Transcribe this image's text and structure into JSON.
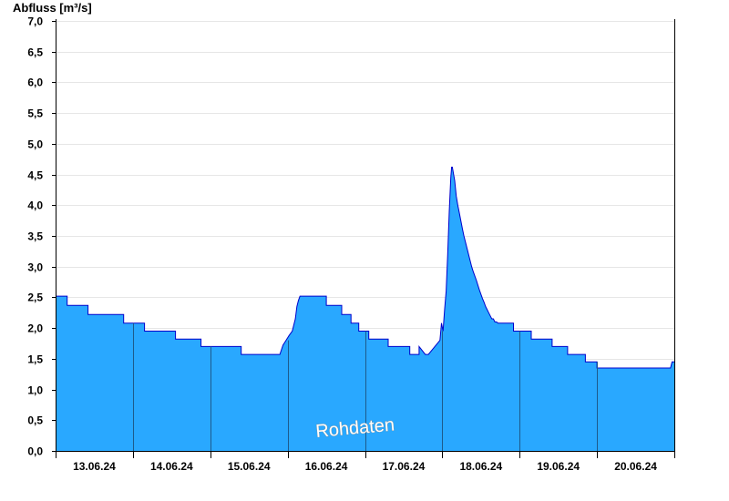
{
  "chart_data": {
    "type": "area",
    "ylabel": "Abfluss [m³/s]",
    "xlabel": "",
    "title": "",
    "watermark": "Rohdaten",
    "ylim": [
      0,
      7.0
    ],
    "xlim": [
      0,
      8.0
    ],
    "yticks": [
      "0,0",
      "0,5",
      "1,0",
      "1,5",
      "2,0",
      "2,5",
      "3,0",
      "3,5",
      "4,0",
      "4,5",
      "5,0",
      "5,5",
      "6,0",
      "6,5",
      "7,0"
    ],
    "ytick_values": [
      0,
      0.5,
      1.0,
      1.5,
      2.0,
      2.5,
      3.0,
      3.5,
      4.0,
      4.5,
      5.0,
      5.5,
      6.0,
      6.5,
      7.0
    ],
    "xticks": [
      "13.06.24",
      "14.06.24",
      "15.06.24",
      "16.06.24",
      "17.06.24",
      "18.06.24",
      "19.06.24",
      "20.06.24"
    ],
    "grid": true,
    "colors": {
      "fill": "#29a8ff",
      "line": "#0000cc",
      "grid": "#e6e6e6",
      "day_line": "#1e5a8c"
    },
    "series": [
      {
        "x": [
          0,
          0.15,
          0.15,
          0.42,
          0.42,
          0.88,
          0.88,
          1.15,
          1.15,
          1.55,
          1.55,
          1.88,
          1.88,
          2.4,
          2.4,
          2.9,
          2.94,
          2.98,
          3.02,
          3.06,
          3.1,
          3.12,
          3.14,
          3.16,
          3.2,
          3.5,
          3.5,
          3.7,
          3.7,
          3.82,
          3.82,
          3.92,
          3.92,
          4.05,
          4.05,
          4.3,
          4.3,
          4.58,
          4.58,
          4.7,
          4.7,
          4.78,
          4.8,
          4.82,
          4.82,
          4.97,
          4.99,
          5.01,
          5.03,
          5.05,
          5.07,
          5.09,
          5.11,
          5.12,
          5.125,
          5.13,
          5.16,
          5.18,
          5.2,
          5.22,
          5.24,
          5.26,
          5.28,
          5.3,
          5.32,
          5.34,
          5.36,
          5.38,
          5.4,
          5.42,
          5.44,
          5.46,
          5.48,
          5.5,
          5.52,
          5.54,
          5.56,
          5.58,
          5.6,
          5.62,
          5.64,
          5.66,
          5.68,
          5.7,
          5.72,
          5.74,
          5.76,
          5.78,
          5.8,
          5.82,
          5.84,
          5.86,
          5.88,
          5.92,
          5.92,
          6.0,
          6.0,
          6.15,
          6.15,
          6.42,
          6.42,
          6.62,
          6.62,
          6.85,
          6.85,
          7.0,
          7.0,
          7.25,
          7.25,
          7.95,
          7.97,
          8.0
        ],
        "y": [
          2.52,
          2.52,
          2.37,
          2.37,
          2.22,
          2.22,
          2.08,
          2.08,
          1.95,
          1.95,
          1.82,
          1.82,
          1.7,
          1.7,
          1.57,
          1.57,
          1.72,
          1.8,
          1.88,
          1.95,
          2.15,
          2.35,
          2.45,
          2.52,
          2.52,
          2.52,
          2.37,
          2.37,
          2.22,
          2.22,
          2.08,
          2.08,
          1.95,
          1.95,
          1.82,
          1.82,
          1.7,
          1.7,
          1.57,
          1.57,
          1.7,
          1.57,
          1.57,
          1.57,
          1.57,
          1.8,
          2.08,
          1.95,
          2.3,
          2.6,
          3.2,
          3.9,
          4.45,
          4.62,
          4.62,
          4.62,
          4.4,
          4.15,
          4.0,
          3.88,
          3.75,
          3.62,
          3.5,
          3.4,
          3.3,
          3.2,
          3.1,
          3.0,
          2.92,
          2.85,
          2.78,
          2.7,
          2.62,
          2.55,
          2.48,
          2.42,
          2.35,
          2.3,
          2.25,
          2.2,
          2.15,
          2.15,
          2.1,
          2.1,
          2.08,
          2.08,
          2.08,
          2.08,
          2.08,
          2.08,
          2.08,
          2.08,
          2.08,
          2.08,
          1.95,
          1.95,
          1.95,
          1.95,
          1.82,
          1.82,
          1.7,
          1.7,
          1.57,
          1.57,
          1.45,
          1.45,
          1.35,
          1.35,
          1.35,
          1.35,
          1.45,
          1.45
        ]
      }
    ]
  }
}
